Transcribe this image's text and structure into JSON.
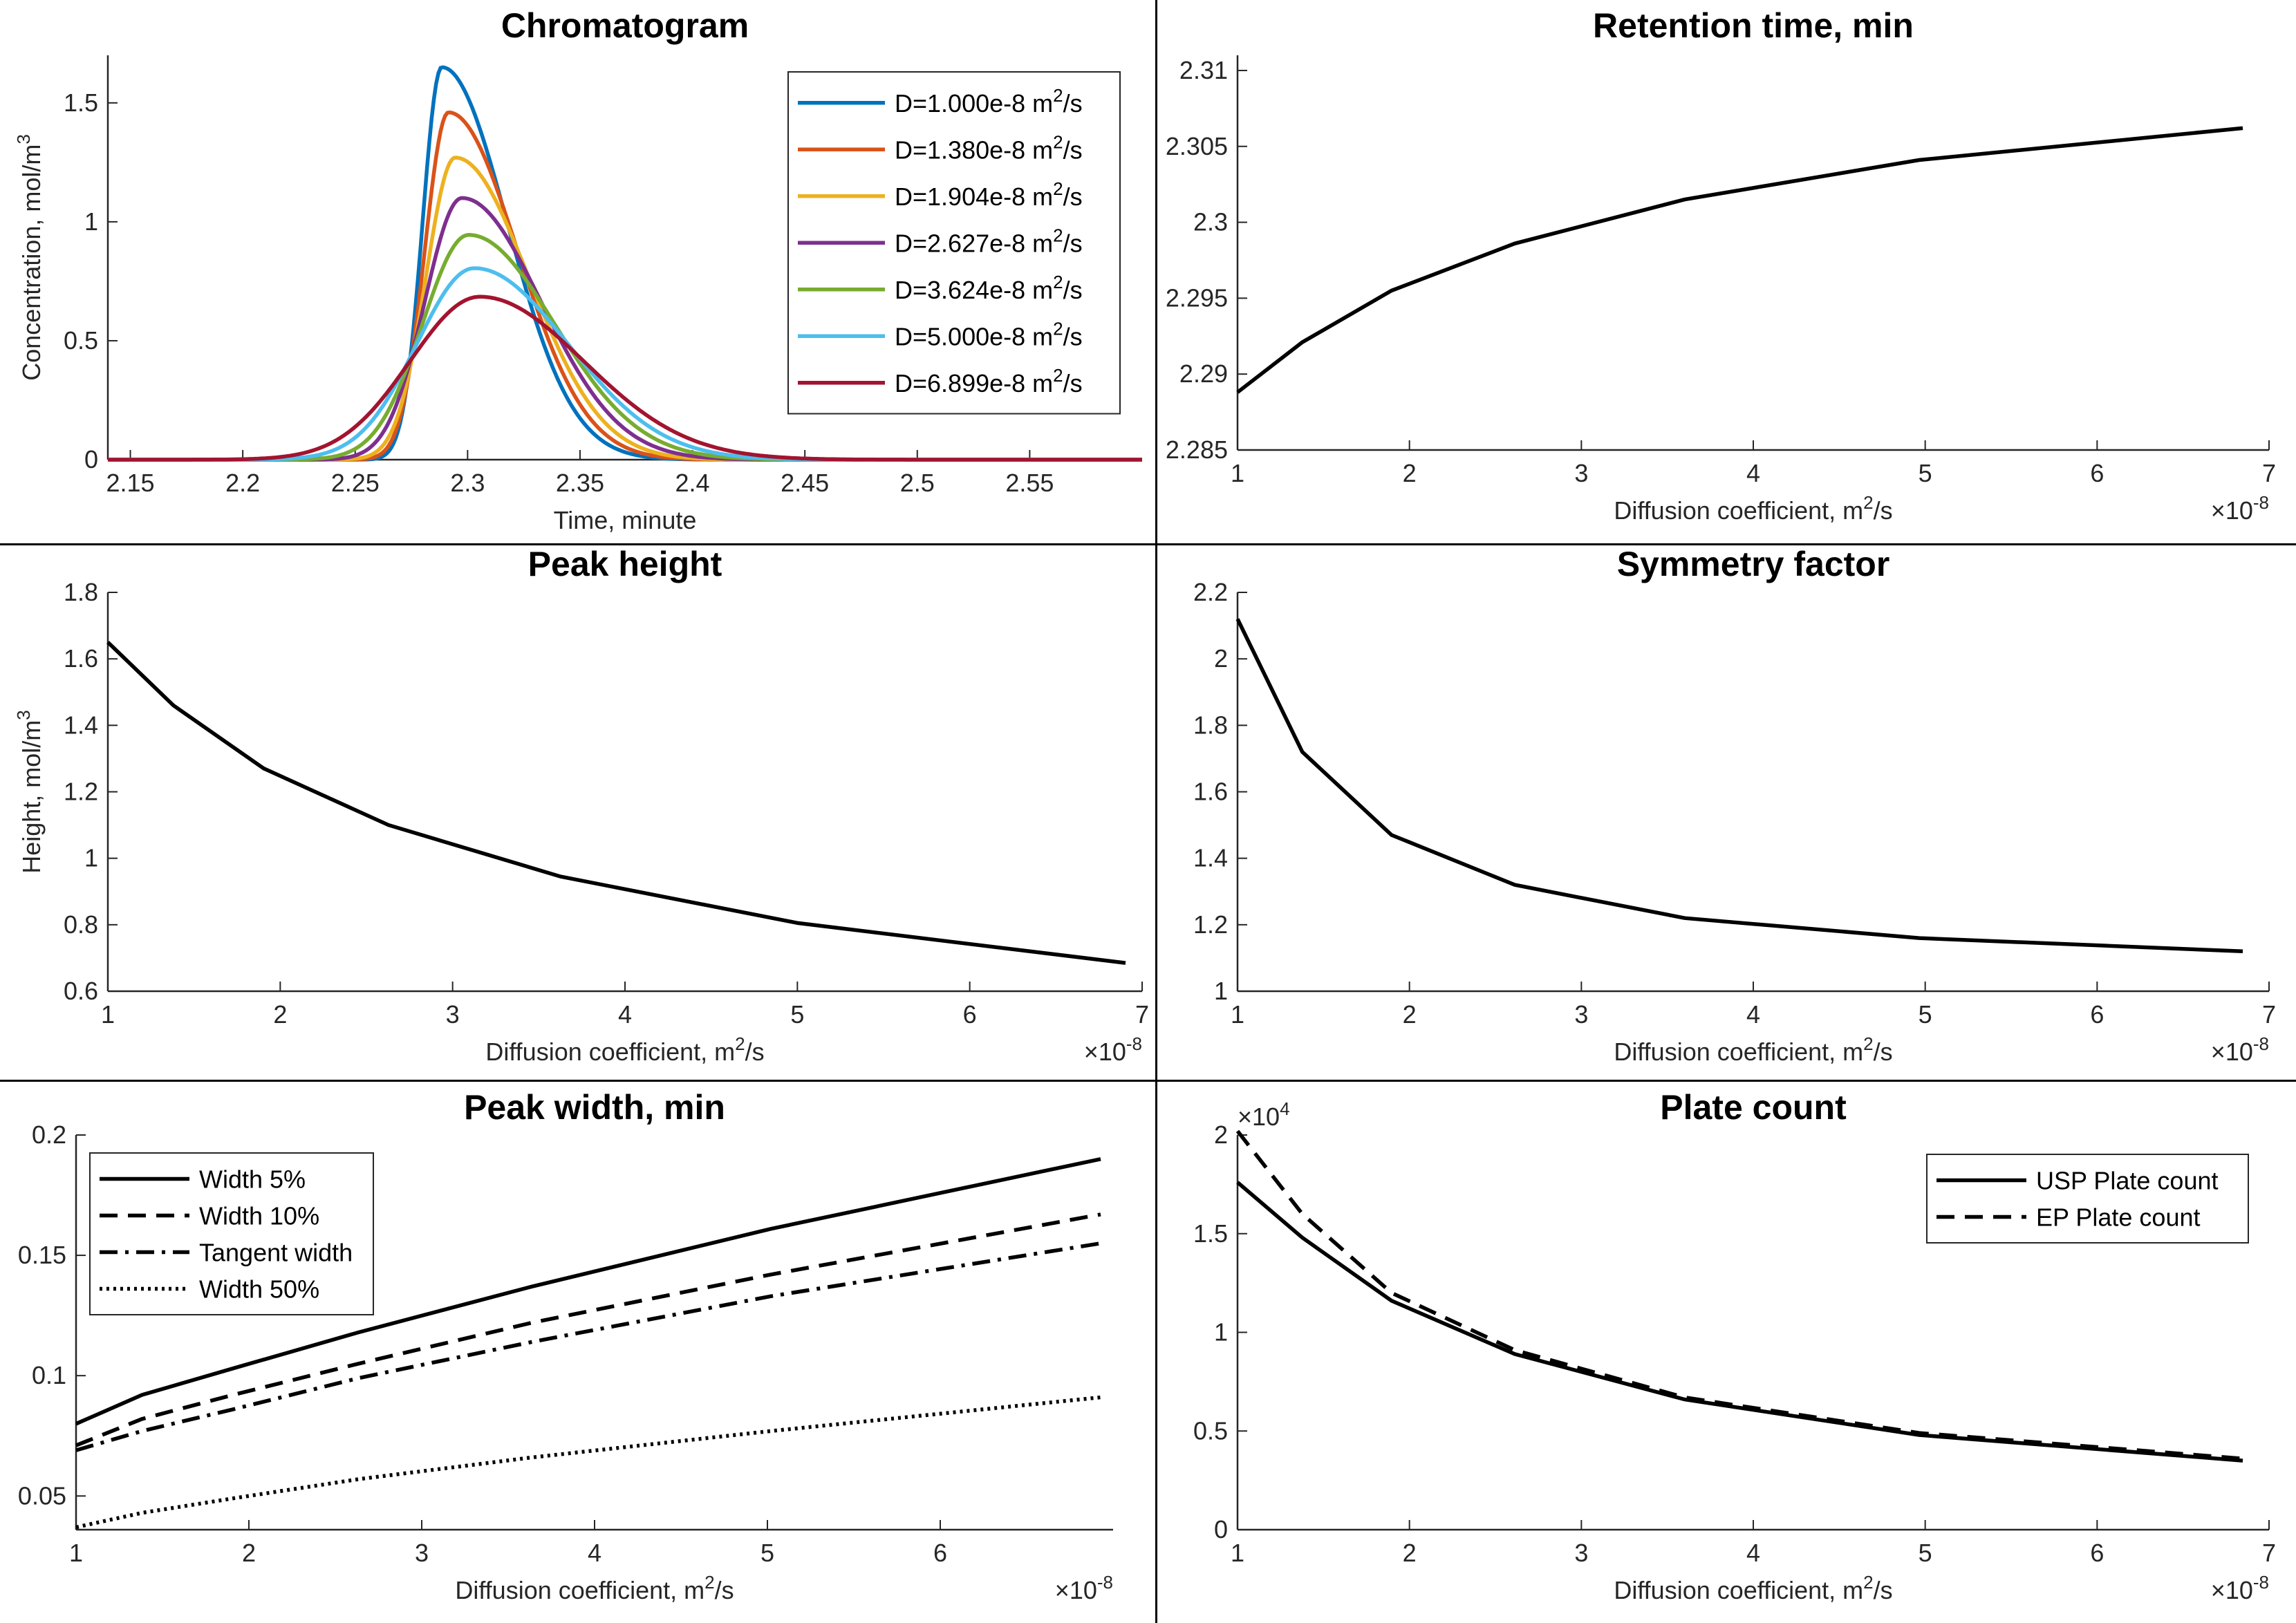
{
  "chart_data": [
    {
      "type": "line",
      "title": "Chromatogram",
      "xlabel": "Time, minute",
      "ylabel": "Concentration, mol/m",
      "ylabel_sup": "3",
      "xlim": [
        2.14,
        2.6
      ],
      "ylim": [
        0,
        1.7
      ],
      "xticks": [
        2.15,
        2.2,
        2.25,
        2.3,
        2.35,
        2.4,
        2.45,
        2.5,
        2.55
      ],
      "xtick_labels": [
        "2.15",
        "2.2",
        "2.25",
        "2.3",
        "2.35",
        "2.4",
        "2.45",
        "2.5",
        "2.55"
      ],
      "yticks": [
        0,
        0.5,
        1,
        1.5
      ],
      "ytick_labels": [
        "0",
        "0.5",
        "1",
        "1.5"
      ],
      "legend_position": "top-right",
      "series": [
        {
          "name": "D=1.000e-8 m",
          "sup": "2",
          "unit_tail": "/s",
          "color": "#0072BD",
          "peak_time": 2.2885,
          "peak_height": 1.65,
          "sigma_left": 0.0085,
          "sigma_right": 0.029
        },
        {
          "name": "D=1.380e-8 m",
          "sup": "2",
          "unit_tail": "/s",
          "color": "#D95319",
          "peak_time": 2.2915,
          "peak_height": 1.46,
          "sigma_left": 0.0105,
          "sigma_right": 0.0305
        },
        {
          "name": "D=1.904e-8 m",
          "sup": "2",
          "unit_tail": "/s",
          "color": "#EDB120",
          "peak_time": 2.2945,
          "peak_height": 1.27,
          "sigma_left": 0.013,
          "sigma_right": 0.0325
        },
        {
          "name": "D=2.627e-8 m",
          "sup": "2",
          "unit_tail": "/s",
          "color": "#7E2F8E",
          "peak_time": 2.2975,
          "peak_height": 1.1,
          "sigma_left": 0.0165,
          "sigma_right": 0.035
        },
        {
          "name": "D=3.624e-8 m",
          "sup": "2",
          "unit_tail": "/s",
          "color": "#77AC30",
          "peak_time": 2.3005,
          "peak_height": 0.945,
          "sigma_left": 0.0205,
          "sigma_right": 0.038
        },
        {
          "name": "D=5.000e-8 m",
          "sup": "2",
          "unit_tail": "/s",
          "color": "#4DBEEE",
          "peak_time": 2.303,
          "peak_height": 0.805,
          "sigma_left": 0.0255,
          "sigma_right": 0.0415
        },
        {
          "name": "D=6.899e-8 m",
          "sup": "2",
          "unit_tail": "/s",
          "color": "#A2142F",
          "peak_time": 2.3055,
          "peak_height": 0.685,
          "sigma_left": 0.031,
          "sigma_right": 0.046
        }
      ]
    },
    {
      "type": "line",
      "title": "Retention time, min",
      "xlabel": "Diffusion coefficient, m",
      "xlabel_sup": "2",
      "xlabel_tail": "/s",
      "x_exponent_base": "×10",
      "x_exponent": "-8",
      "xlim": [
        1,
        7
      ],
      "ylim": [
        2.285,
        2.311
      ],
      "xticks": [
        1,
        2,
        3,
        4,
        5,
        6,
        7
      ],
      "xtick_labels": [
        "1",
        "2",
        "3",
        "4",
        "5",
        "6",
        "7"
      ],
      "yticks": [
        2.285,
        2.29,
        2.295,
        2.3,
        2.305,
        2.31
      ],
      "ytick_labels": [
        "2.285",
        "2.29",
        "2.295",
        "2.3",
        "2.305",
        "2.31"
      ],
      "x": [
        1.0,
        1.38,
        1.904,
        2.627,
        3.624,
        5.0,
        6.899
      ],
      "series": [
        {
          "name": "Retention time",
          "values": [
            2.2888,
            2.2921,
            2.2955,
            2.2986,
            2.3015,
            2.3041,
            2.3062
          ],
          "dash": "solid"
        }
      ]
    },
    {
      "type": "line",
      "title": "Peak height",
      "xlabel": "Diffusion coefficient, m",
      "xlabel_sup": "2",
      "xlabel_tail": "/s",
      "ylabel": "Height, mol/m",
      "ylabel_sup": "3",
      "x_exponent_base": "×10",
      "x_exponent": "-8",
      "xlim": [
        1,
        7
      ],
      "ylim": [
        0.6,
        1.8
      ],
      "xticks": [
        1,
        2,
        3,
        4,
        5,
        6,
        7
      ],
      "xtick_labels": [
        "1",
        "2",
        "3",
        "4",
        "5",
        "6",
        "7"
      ],
      "yticks": [
        0.6,
        0.8,
        1,
        1.2,
        1.4,
        1.6,
        1.8
      ],
      "ytick_labels": [
        "0.6",
        "0.8",
        "1",
        "1.2",
        "1.4",
        "1.6",
        "1.8"
      ],
      "x": [
        1.0,
        1.38,
        1.904,
        2.627,
        3.624,
        5.0,
        6.899
      ],
      "series": [
        {
          "name": "Peak height",
          "values": [
            1.65,
            1.46,
            1.27,
            1.1,
            0.945,
            0.805,
            0.685
          ],
          "dash": "solid"
        }
      ]
    },
    {
      "type": "line",
      "title": "Symmetry factor",
      "xlabel": "Diffusion coefficient, m",
      "xlabel_sup": "2",
      "xlabel_tail": "/s",
      "x_exponent_base": "×10",
      "x_exponent": "-8",
      "xlim": [
        1,
        7
      ],
      "ylim": [
        1,
        2.2
      ],
      "xticks": [
        1,
        2,
        3,
        4,
        5,
        6,
        7
      ],
      "xtick_labels": [
        "1",
        "2",
        "3",
        "4",
        "5",
        "6",
        "7"
      ],
      "yticks": [
        1,
        1.2,
        1.4,
        1.6,
        1.8,
        2,
        2.2
      ],
      "ytick_labels": [
        "1",
        "1.2",
        "1.4",
        "1.6",
        "1.8",
        "2",
        "2.2"
      ],
      "x": [
        1.0,
        1.38,
        1.904,
        2.627,
        3.624,
        5.0,
        6.899
      ],
      "series": [
        {
          "name": "Symmetry factor",
          "values": [
            2.12,
            1.72,
            1.47,
            1.32,
            1.22,
            1.16,
            1.12
          ],
          "dash": "solid"
        }
      ]
    },
    {
      "type": "line",
      "title": "Peak width, min",
      "xlabel": "Diffusion coefficient, m",
      "xlabel_sup": "2",
      "xlabel_tail": "/s",
      "x_exponent_base": "×10",
      "x_exponent": "-8",
      "xlim": [
        1,
        7
      ],
      "ylim": [
        0.036,
        0.2
      ],
      "xticks": [
        1,
        2,
        3,
        4,
        5,
        6
      ],
      "xtick_labels": [
        "1",
        "2",
        "3",
        "4",
        "5",
        "6"
      ],
      "yticks": [
        0.05,
        0.1,
        0.15,
        0.2
      ],
      "ytick_labels": [
        "0.05",
        "0.1",
        "0.15",
        "0.2"
      ],
      "legend_position": "top-left",
      "x": [
        1.0,
        1.38,
        1.904,
        2.627,
        3.624,
        5.0,
        6.899
      ],
      "series": [
        {
          "name": "Width 5%",
          "values": [
            0.08,
            0.092,
            0.103,
            0.118,
            0.137,
            0.161,
            0.19
          ],
          "dash": "solid"
        },
        {
          "name": "Width 10%",
          "values": [
            0.071,
            0.082,
            0.092,
            0.105,
            0.122,
            0.142,
            0.167
          ],
          "dash": "dashed"
        },
        {
          "name": "Tangent width",
          "values": [
            0.069,
            0.077,
            0.086,
            0.099,
            0.114,
            0.133,
            0.155
          ],
          "dash": "dashdot"
        },
        {
          "name": "Width 50%",
          "values": [
            0.037,
            0.043,
            0.049,
            0.057,
            0.066,
            0.077,
            0.091
          ],
          "dash": "dotted"
        }
      ]
    },
    {
      "type": "line",
      "title": "Plate count",
      "xlabel": "Diffusion coefficient, m",
      "xlabel_sup": "2",
      "xlabel_tail": "/s",
      "x_exponent_base": "×10",
      "x_exponent": "-8",
      "y_exponent_base": "×10",
      "y_exponent": "4",
      "xlim": [
        1,
        7
      ],
      "ylim": [
        0,
        2
      ],
      "xticks": [
        1,
        2,
        3,
        4,
        5,
        6,
        7
      ],
      "xtick_labels": [
        "1",
        "2",
        "3",
        "4",
        "5",
        "6",
        "7"
      ],
      "yticks": [
        0,
        0.5,
        1,
        1.5,
        2
      ],
      "ytick_labels": [
        "0",
        "0.5",
        "1",
        "1.5",
        "2"
      ],
      "legend_position": "top-right",
      "x": [
        1.0,
        1.38,
        1.904,
        2.627,
        3.624,
        5.0,
        6.899
      ],
      "series": [
        {
          "name": "USP Plate count",
          "values": [
            1.76,
            1.48,
            1.16,
            0.89,
            0.66,
            0.48,
            0.35
          ],
          "dash": "solid"
        },
        {
          "name": "EP Plate count",
          "values": [
            2.02,
            1.6,
            1.2,
            0.91,
            0.67,
            0.49,
            0.36
          ],
          "dash": "dashed"
        }
      ]
    }
  ]
}
